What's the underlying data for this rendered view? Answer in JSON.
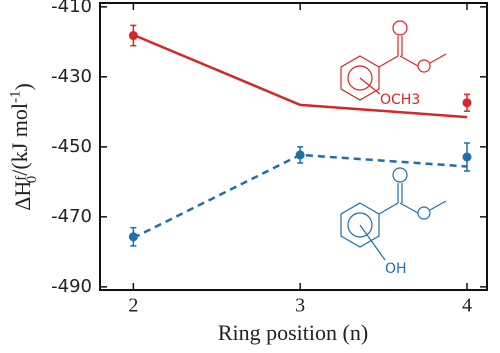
{
  "chart_data": {
    "type": "line",
    "y_label": [
      "ΔH",
      "f",
      "0",
      "/(kJ mol",
      "-1",
      ")"
    ],
    "x_label": "Ring position (n)",
    "x": [
      2,
      3,
      4
    ],
    "xlim": [
      1.8,
      4.12
    ],
    "xticks": [
      2,
      3,
      4
    ],
    "ylim": [
      -490.9,
      -408.9
    ],
    "yticks": [
      -490,
      -470,
      -450,
      -430,
      -410
    ],
    "series": [
      {
        "color": "#d62728",
        "style": "solid",
        "values": [
          -418,
          -438,
          -441.5
        ]
      },
      {
        "color": "#d62728",
        "style": "markers",
        "values": [
          -418.2,
          null,
          -437.4
        ],
        "errors": [
          2.9,
          null,
          2.4
        ]
      },
      {
        "color": "#1f6fa8",
        "style": "dashed",
        "values": [
          -476,
          -452.3,
          -455.6
        ]
      },
      {
        "color": "#1f6fa8",
        "style": "markers",
        "values": [
          -475.7,
          -452.3,
          -452.9
        ],
        "errors": [
          2.6,
          2.3,
          4
        ]
      }
    ],
    "annotations": [
      "OCH3",
      "OH"
    ]
  }
}
